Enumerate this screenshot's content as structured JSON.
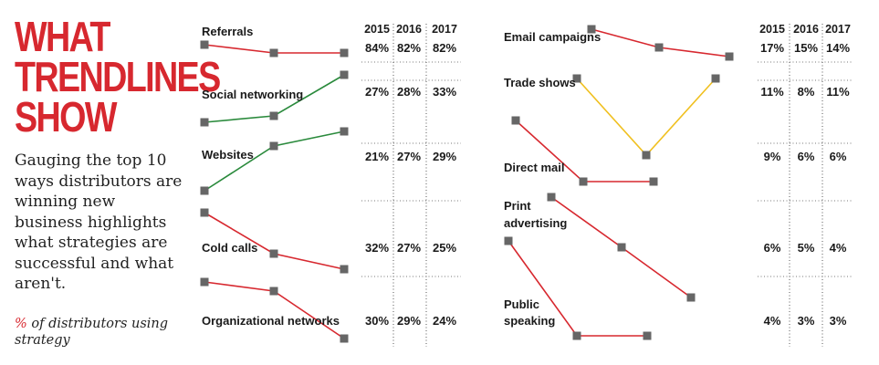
{
  "headline": [
    "WHAT",
    "TRENDLINES",
    "SHOW"
  ],
  "description": "Gauging the top 10 ways distributors are winning new business highlights what strategies are successful and what aren't.",
  "unit_note": {
    "prefix": "%",
    "rest": " of distributors using strategy"
  },
  "colors": {
    "headline": "#d7282f",
    "down": "#d7282f",
    "up": "#2a8a3c",
    "mixed": "#f0c020",
    "marker": "#666666"
  },
  "chart_data": [
    {
      "type": "line",
      "panel": "left",
      "years": [
        "2015",
        "2016",
        "2017"
      ],
      "series": [
        {
          "name": "Referrals",
          "values": [
            "84%",
            "82%",
            "82%"
          ],
          "numeric": [
            84,
            82,
            82
          ],
          "trend": "down"
        },
        {
          "name": "Social networking",
          "values": [
            "27%",
            "28%",
            "33%"
          ],
          "numeric": [
            27,
            28,
            33
          ],
          "trend": "up"
        },
        {
          "name": "Websites",
          "values": [
            "21%",
            "27%",
            "29%"
          ],
          "numeric": [
            21,
            27,
            29
          ],
          "trend": "up"
        },
        {
          "name": "Cold calls",
          "values": [
            "32%",
            "27%",
            "25%"
          ],
          "numeric": [
            32,
            27,
            25
          ],
          "trend": "down"
        },
        {
          "name": "Organizational networks",
          "values": [
            "30%",
            "29%",
            "24%"
          ],
          "numeric": [
            30,
            29,
            24
          ],
          "trend": "down"
        }
      ]
    },
    {
      "type": "line",
      "panel": "right",
      "years": [
        "2015",
        "2016",
        "2017"
      ],
      "series": [
        {
          "name": "Email campaigns",
          "values": [
            "17%",
            "15%",
            "14%"
          ],
          "numeric": [
            17,
            15,
            14
          ],
          "trend": "down"
        },
        {
          "name": "Trade shows",
          "values": [
            "11%",
            "8%",
            "11%"
          ],
          "numeric": [
            11,
            8,
            11
          ],
          "trend": "mixed"
        },
        {
          "name": "Direct mail",
          "values": [
            "9%",
            "6%",
            "6%"
          ],
          "numeric": [
            9,
            6,
            6
          ],
          "trend": "down"
        },
        {
          "name": "Print advertising",
          "values": [
            "6%",
            "5%",
            "4%"
          ],
          "numeric": [
            6,
            5,
            4
          ],
          "trend": "down"
        },
        {
          "name": "Public speaking",
          "values": [
            "4%",
            "3%",
            "3%"
          ],
          "numeric": [
            4,
            3,
            3
          ],
          "trend": "down"
        }
      ]
    }
  ]
}
